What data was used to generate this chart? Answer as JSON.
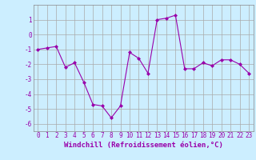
{
  "x": [
    0,
    1,
    2,
    3,
    4,
    5,
    6,
    7,
    8,
    9,
    10,
    11,
    12,
    13,
    14,
    15,
    16,
    17,
    18,
    19,
    20,
    21,
    22,
    23
  ],
  "y": [
    -1.0,
    -0.9,
    -0.8,
    -2.2,
    -1.9,
    -3.2,
    -4.7,
    -4.8,
    -5.6,
    -4.8,
    -1.2,
    -1.6,
    -2.6,
    1.0,
    1.1,
    1.3,
    -2.3,
    -2.3,
    -1.9,
    -2.1,
    -1.7,
    -1.7,
    -2.0,
    -2.6
  ],
  "line_color": "#9900aa",
  "marker": "D",
  "marker_size": 2,
  "bg_color": "#cceeff",
  "grid_color": "#aaaaaa",
  "xlabel": "Windchill (Refroidissement éolien,°C)",
  "ylabel": "",
  "title": "",
  "xlim": [
    -0.5,
    23.5
  ],
  "ylim": [
    -6.5,
    2.0
  ],
  "yticks": [
    1,
    0,
    -1,
    -2,
    -3,
    -4,
    -5,
    -6
  ],
  "xticks": [
    0,
    1,
    2,
    3,
    4,
    5,
    6,
    7,
    8,
    9,
    10,
    11,
    12,
    13,
    14,
    15,
    16,
    17,
    18,
    19,
    20,
    21,
    22,
    23
  ],
  "tick_fontsize": 5.5,
  "xlabel_fontsize": 6.5
}
